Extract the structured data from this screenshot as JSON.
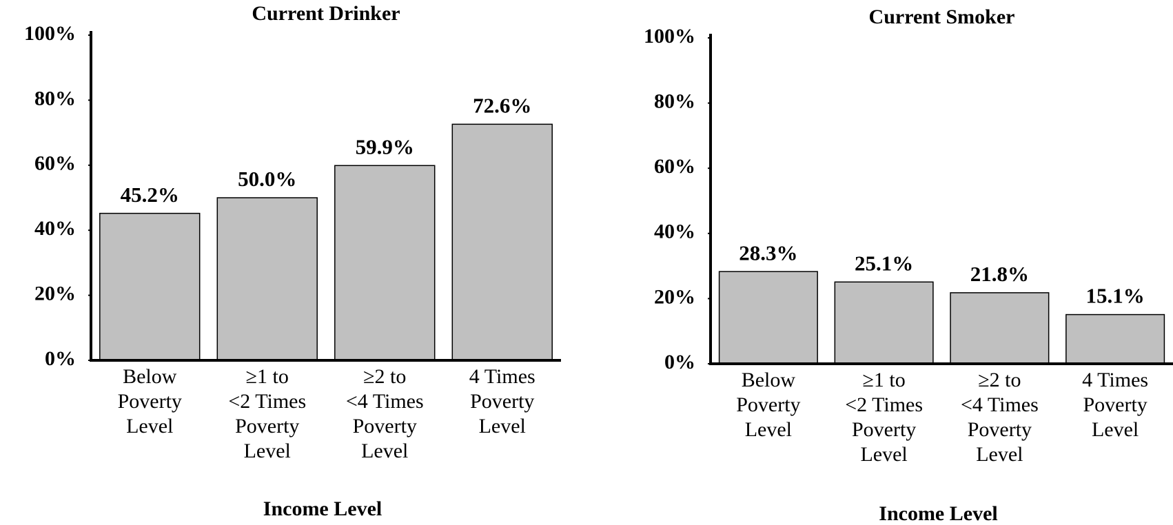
{
  "chart_data": [
    {
      "type": "bar",
      "title": "Current Drinker",
      "x_label": "Income Level",
      "categories": [
        "Below\nPoverty\nLevel",
        "≥1 to\n<2 Times\nPoverty\nLevel",
        "≥2 to\n<4 Times\nPoverty\nLevel",
        "4 Times\nPoverty\nLevel"
      ],
      "values": [
        45.2,
        50.0,
        59.9,
        72.6
      ],
      "value_labels": [
        "45.2%",
        "50.0%",
        "59.9%",
        "72.6%"
      ],
      "color": "#c0c0c0",
      "ylim": [
        0,
        100
      ],
      "yticks": [
        {
          "value": 0,
          "label": "0%"
        },
        {
          "value": 20,
          "label": "20%"
        },
        {
          "value": 40,
          "label": "40%"
        },
        {
          "value": 60,
          "label": "60%"
        },
        {
          "value": 80,
          "label": "80%"
        },
        {
          "value": 100,
          "label": "100%"
        }
      ]
    },
    {
      "type": "bar",
      "title": "Current Smoker",
      "x_label": "Income Level",
      "categories": [
        "Below\nPoverty\nLevel",
        "≥1 to\n<2 Times\nPoverty\nLevel",
        "≥2 to\n<4 Times\nPoverty\nLevel",
        "4 Times\nPoverty\nLevel"
      ],
      "values": [
        28.3,
        25.1,
        21.8,
        15.1
      ],
      "value_labels": [
        "28.3%",
        "25.1%",
        "21.8%",
        "15.1%"
      ],
      "color": "#c0c0c0",
      "ylim": [
        0,
        100
      ],
      "yticks": [
        {
          "value": 0,
          "label": "0%"
        },
        {
          "value": 20,
          "label": "20%"
        },
        {
          "value": 40,
          "label": "40%"
        },
        {
          "value": 60,
          "label": "60%"
        },
        {
          "value": 80,
          "label": "80%"
        },
        {
          "value": 100,
          "label": "100%"
        }
      ]
    }
  ]
}
